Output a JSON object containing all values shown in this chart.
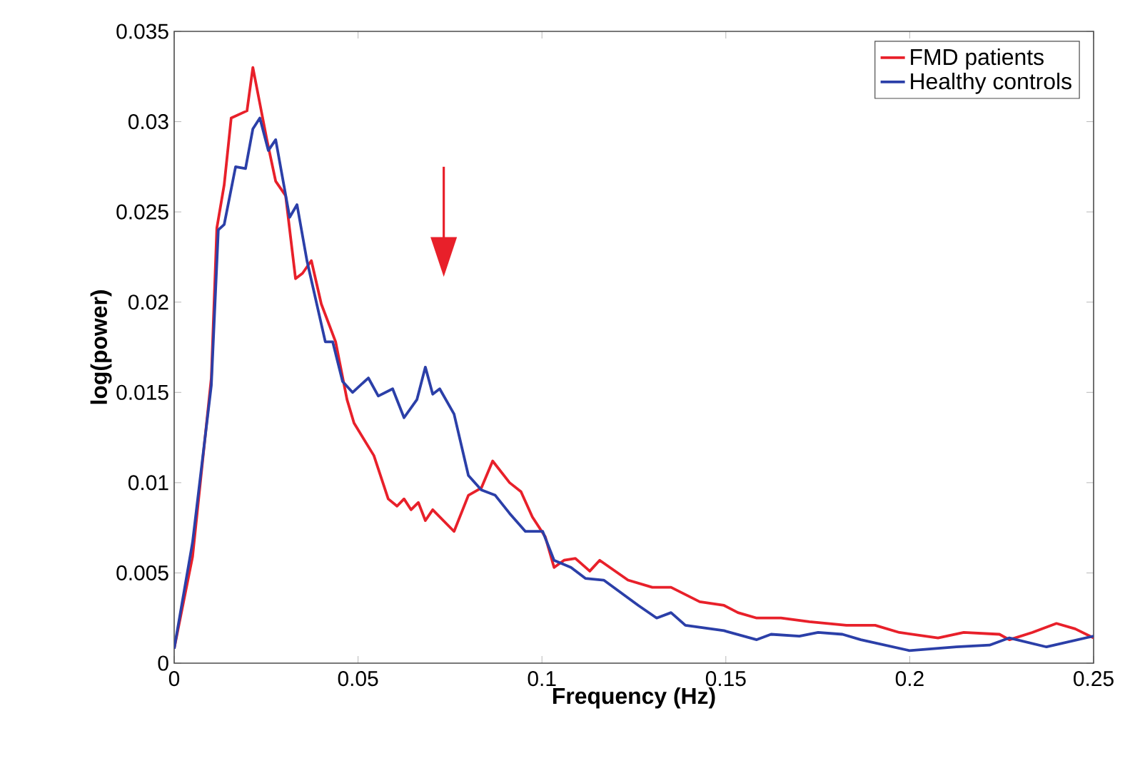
{
  "chart_data": {
    "type": "line",
    "xlabel": "Frequency (Hz)",
    "ylabel": "log(power)",
    "xlim": [
      0,
      0.25
    ],
    "ylim": [
      0,
      0.035
    ],
    "xticks": [
      0,
      0.05,
      0.1,
      0.15,
      0.2,
      0.25
    ],
    "yticks": [
      0,
      0.005,
      0.01,
      0.015,
      0.02,
      0.025,
      0.03,
      0.035
    ],
    "grid": false,
    "legend": "top right",
    "marker": "none",
    "line_style": "solid",
    "series": [
      {
        "name": "FMD patients",
        "color": "#e8202a",
        "x": [
          0,
          0.005,
          0.0101,
          0.0116,
          0.0136,
          0.0155,
          0.0198,
          0.0214,
          0.0233,
          0.0252,
          0.0276,
          0.0303,
          0.033,
          0.0349,
          0.0373,
          0.04,
          0.0439,
          0.047,
          0.0489,
          0.0543,
          0.0582,
          0.0606,
          0.0625,
          0.0644,
          0.0664,
          0.0683,
          0.0703,
          0.0761,
          0.08,
          0.0835,
          0.0866,
          0.0912,
          0.0943,
          0.0974,
          0.1009,
          0.1033,
          0.106,
          0.1091,
          0.113,
          0.1157,
          0.1234,
          0.13,
          0.1351,
          0.1429,
          0.1495,
          0.1533,
          0.1584,
          0.165,
          0.1727,
          0.1828,
          0.1906,
          0.1972,
          0.2077,
          0.2147,
          0.2244,
          0.2271,
          0.2333,
          0.2399,
          0.245,
          0.25
        ],
        "values": [
          0.0008,
          0.0059,
          0.0158,
          0.0241,
          0.0265,
          0.0302,
          0.0306,
          0.033,
          0.031,
          0.029,
          0.0267,
          0.0259,
          0.0213,
          0.0216,
          0.0223,
          0.0199,
          0.0178,
          0.0146,
          0.0133,
          0.0115,
          0.0091,
          0.0087,
          0.0091,
          0.0085,
          0.0089,
          0.0079,
          0.0085,
          0.0073,
          0.0093,
          0.0097,
          0.0112,
          0.01,
          0.0095,
          0.0081,
          0.007,
          0.0053,
          0.0057,
          0.0058,
          0.0051,
          0.0057,
          0.0046,
          0.0042,
          0.0042,
          0.0034,
          0.0032,
          0.0028,
          0.0025,
          0.0025,
          0.0023,
          0.0021,
          0.0021,
          0.0017,
          0.0014,
          0.0017,
          0.0016,
          0.0013,
          0.0017,
          0.0022,
          0.0019,
          0.0014
        ]
      },
      {
        "name": "Healthy controls",
        "color": "#2b3fa8",
        "x": [
          0,
          0.005,
          0.0101,
          0.012,
          0.0136,
          0.0167,
          0.0194,
          0.0214,
          0.0233,
          0.0256,
          0.0276,
          0.0314,
          0.0334,
          0.0361,
          0.0411,
          0.0431,
          0.0458,
          0.0485,
          0.0528,
          0.0555,
          0.0594,
          0.0625,
          0.066,
          0.0683,
          0.0703,
          0.0722,
          0.0761,
          0.08,
          0.0835,
          0.0873,
          0.0912,
          0.0955,
          0.1002,
          0.1033,
          0.1079,
          0.1118,
          0.1168,
          0.1262,
          0.1312,
          0.1351,
          0.139,
          0.1495,
          0.1584,
          0.1623,
          0.17,
          0.1751,
          0.1817,
          0.1867,
          0.1999,
          0.2127,
          0.2217,
          0.2271,
          0.2372,
          0.25
        ],
        "values": [
          0.0008,
          0.0067,
          0.0154,
          0.024,
          0.0243,
          0.0275,
          0.0274,
          0.0296,
          0.0302,
          0.0284,
          0.029,
          0.0247,
          0.0254,
          0.0223,
          0.0178,
          0.0178,
          0.0156,
          0.015,
          0.0158,
          0.0148,
          0.0152,
          0.0136,
          0.0146,
          0.0164,
          0.0149,
          0.0152,
          0.0138,
          0.0104,
          0.0096,
          0.0093,
          0.0083,
          0.0073,
          0.0073,
          0.0057,
          0.0053,
          0.0047,
          0.0046,
          0.0032,
          0.0025,
          0.0028,
          0.0021,
          0.0018,
          0.0013,
          0.0016,
          0.0015,
          0.0017,
          0.0016,
          0.0013,
          0.0007,
          0.0009,
          0.001,
          0.0014,
          0.0009,
          0.0015
        ]
      }
    ]
  }
}
